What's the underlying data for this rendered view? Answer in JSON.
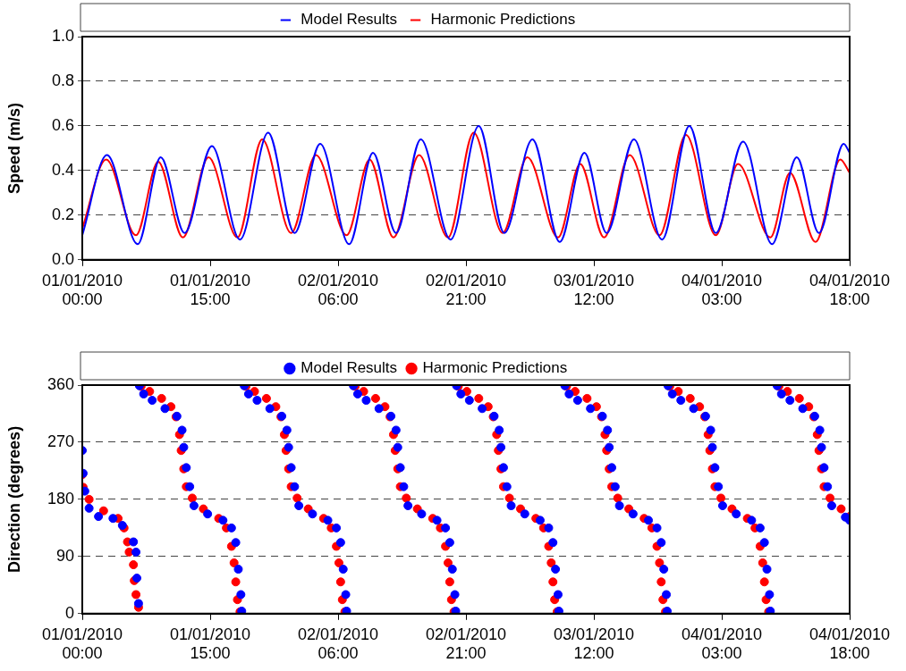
{
  "chart_data": [
    {
      "type": "line",
      "ylabel": "Speed (m/s)",
      "xlim": [
        "2010-01-01T00:00",
        "2010-01-04T18:00"
      ],
      "xticks": [
        {
          "value": "2010-01-01T00:00",
          "label": "01/01/2010 00:00"
        },
        {
          "value": "2010-01-01T15:00",
          "label": "01/01/2010 15:00"
        },
        {
          "value": "2010-01-02T06:00",
          "label": "02/01/2010 06:00"
        },
        {
          "value": "2010-01-02T21:00",
          "label": "02/01/2010 21:00"
        },
        {
          "value": "2010-01-03T12:00",
          "label": "03/01/2010 12:00"
        },
        {
          "value": "2010-01-04T03:00",
          "label": "04/01/2010 03:00"
        },
        {
          "value": "2010-01-04T18:00",
          "label": "04/01/2010 18:00"
        }
      ],
      "ylim": [
        0,
        1
      ],
      "yticks": [
        {
          "value": 0,
          "label": "0.0"
        },
        0.2,
        0.4,
        0.6,
        0.8,
        {
          "value": 1,
          "label": "1.0"
        }
      ],
      "grid": "y",
      "legend": "top",
      "marker": "none",
      "series": [
        {
          "name": "Model Results",
          "color": "#0000ff",
          "x": [
            "2010-01-01T00:00",
            "2010-01-01T02:54",
            "2010-01-01T06:30",
            "2010-01-01T09:12",
            "2010-01-01T12:00",
            "2010-01-01T15:12",
            "2010-01-01T18:30",
            "2010-01-01T21:48",
            "2010-01-02T00:54",
            "2010-01-02T03:54",
            "2010-01-02T07:18",
            "2010-01-02T10:06",
            "2010-01-02T12:48",
            "2010-01-02T15:42",
            "2010-01-02T19:12",
            "2010-01-02T22:30",
            "2010-01-03T01:30",
            "2010-01-03T04:48",
            "2010-01-03T08:00",
            "2010-01-03T10:54",
            "2010-01-03T13:30",
            "2010-01-03T16:42",
            "2010-01-03T20:00",
            "2010-01-03T23:12",
            "2010-01-04T02:18",
            "2010-01-04T05:30",
            "2010-01-04T08:54",
            "2010-01-04T11:48",
            "2010-01-04T14:24",
            "2010-01-04T17:18",
            "2010-01-04T18:00"
          ],
          "values": [
            0.11,
            0.47,
            0.07,
            0.46,
            0.12,
            0.51,
            0.09,
            0.57,
            0.12,
            0.52,
            0.07,
            0.48,
            0.12,
            0.54,
            0.09,
            0.6,
            0.12,
            0.54,
            0.08,
            0.48,
            0.12,
            0.54,
            0.09,
            0.6,
            0.12,
            0.53,
            0.07,
            0.46,
            0.12,
            0.52,
            0.48
          ]
        },
        {
          "name": "Harmonic Predictions",
          "color": "#ff0000",
          "x": [
            "2010-01-01T00:00",
            "2010-01-01T02:48",
            "2010-01-01T06:18",
            "2010-01-01T08:54",
            "2010-01-01T11:48",
            "2010-01-01T14:48",
            "2010-01-01T18:12",
            "2010-01-01T21:06",
            "2010-01-02T00:30",
            "2010-01-02T03:24",
            "2010-01-02T07:00",
            "2010-01-02T09:42",
            "2010-01-02T12:30",
            "2010-01-02T15:30",
            "2010-01-02T18:54",
            "2010-01-02T21:54",
            "2010-01-03T01:18",
            "2010-01-03T04:12",
            "2010-01-03T07:48",
            "2010-01-03T10:24",
            "2010-01-03T13:12",
            "2010-01-03T16:12",
            "2010-01-03T19:42",
            "2010-01-03T22:48",
            "2010-01-04T02:18",
            "2010-01-04T04:54",
            "2010-01-04T08:42",
            "2010-01-04T11:00",
            "2010-01-04T14:00",
            "2010-01-04T16:54",
            "2010-01-04T18:00"
          ],
          "values": [
            0.14,
            0.45,
            0.11,
            0.44,
            0.1,
            0.46,
            0.1,
            0.54,
            0.12,
            0.47,
            0.11,
            0.45,
            0.1,
            0.47,
            0.1,
            0.57,
            0.12,
            0.46,
            0.1,
            0.43,
            0.1,
            0.47,
            0.11,
            0.56,
            0.11,
            0.43,
            0.1,
            0.39,
            0.08,
            0.45,
            0.39
          ]
        }
      ]
    },
    {
      "type": "scatter",
      "ylabel": "Direction (degrees)",
      "xlim": [
        "2010-01-01T00:00",
        "2010-01-04T18:00"
      ],
      "xticks": [
        {
          "value": "2010-01-01T00:00",
          "label": "01/01/2010 00:00"
        },
        {
          "value": "2010-01-01T15:00",
          "label": "01/01/2010 15:00"
        },
        {
          "value": "2010-01-02T06:00",
          "label": "02/01/2010 06:00"
        },
        {
          "value": "2010-01-02T21:00",
          "label": "02/01/2010 21:00"
        },
        {
          "value": "2010-01-03T12:00",
          "label": "03/01/2010 12:00"
        },
        {
          "value": "2010-01-04T03:00",
          "label": "04/01/2010 03:00"
        },
        {
          "value": "2010-01-04T18:00",
          "label": "04/01/2010 18:00"
        }
      ],
      "ylim": [
        0,
        360
      ],
      "yticks": [
        0,
        90,
        180,
        270,
        360
      ],
      "grid": "y",
      "legend": "top",
      "marker": "circle",
      "series": [
        {
          "name": "Model Results",
          "color": "#0000ff",
          "x": [
            "2010-01-01T00:00",
            "2010-01-01T00:06",
            "2010-01-01T00:18",
            "2010-01-01T00:48",
            "2010-01-01T01:54",
            "2010-01-01T03:36",
            "2010-01-01T04:42",
            "2010-01-01T06:00",
            "2010-01-01T06:18",
            "2010-01-01T06:24",
            "2010-01-01T06:36",
            "2010-01-01T06:42",
            "2010-01-01T07:12",
            "2010-01-01T08:12",
            "2010-01-01T09:42",
            "2010-01-01T11:06",
            "2010-01-01T11:42",
            "2010-01-01T11:54",
            "2010-01-01T12:12",
            "2010-01-01T12:36",
            "2010-01-01T13:06",
            "2010-01-01T14:42",
            "2010-01-01T16:30",
            "2010-01-01T17:30",
            "2010-01-01T18:00",
            "2010-01-01T18:18",
            "2010-01-01T18:36",
            "2010-01-01T18:42",
            "2010-01-01T19:00",
            "2010-01-01T19:30",
            "2010-01-01T20:30",
            "2010-01-01T22:00",
            "2010-01-01T23:24",
            "2010-01-02T00:00",
            "2010-01-02T00:12",
            "2010-01-02T00:30",
            "2010-01-02T00:54",
            "2010-01-02T01:24",
            "2010-01-02T03:00",
            "2010-01-02T04:48",
            "2010-01-02T05:48",
            "2010-01-02T06:18",
            "2010-01-02T06:36",
            "2010-01-02T06:54",
            "2010-01-02T07:00",
            "2010-01-02T07:48",
            "2010-01-02T08:18",
            "2010-01-02T09:18",
            "2010-01-02T10:48",
            "2010-01-02T12:12",
            "2010-01-02T12:48",
            "2010-01-02T13:00",
            "2010-01-02T13:18",
            "2010-01-02T13:42",
            "2010-01-02T14:12",
            "2010-01-02T15:48",
            "2010-01-02T17:36",
            "2010-01-02T18:36",
            "2010-01-02T19:06",
            "2010-01-02T19:24",
            "2010-01-02T19:42",
            "2010-01-02T19:48",
            "2010-01-02T19:54",
            "2010-01-02T20:24",
            "2010-01-02T21:24",
            "2010-01-02T22:54",
            "2010-01-03T00:18",
            "2010-01-03T00:54",
            "2010-01-03T01:06",
            "2010-01-03T01:24",
            "2010-01-03T01:48",
            "2010-01-03T02:18",
            "2010-01-03T03:54",
            "2010-01-03T05:42",
            "2010-01-03T06:42",
            "2010-01-03T07:12",
            "2010-01-03T07:30",
            "2010-01-03T07:48",
            "2010-01-03T07:54",
            "2010-01-03T08:36",
            "2010-01-03T09:06",
            "2010-01-03T10:06",
            "2010-01-03T11:36",
            "2010-01-03T13:00",
            "2010-01-03T13:36",
            "2010-01-03T13:48",
            "2010-01-03T14:06",
            "2010-01-03T14:30",
            "2010-01-03T15:00",
            "2010-01-03T16:36",
            "2010-01-03T18:24",
            "2010-01-03T19:24",
            "2010-01-03T19:54",
            "2010-01-03T20:12",
            "2010-01-03T20:30",
            "2010-01-03T20:36",
            "2010-01-03T20:42",
            "2010-01-03T21:12",
            "2010-01-03T22:12",
            "2010-01-03T23:42",
            "2010-01-04T01:06",
            "2010-01-04T01:42",
            "2010-01-04T01:54",
            "2010-01-04T02:12",
            "2010-01-04T02:36",
            "2010-01-04T03:06",
            "2010-01-04T04:42",
            "2010-01-04T06:30",
            "2010-01-04T07:30",
            "2010-01-04T08:00",
            "2010-01-04T08:18",
            "2010-01-04T08:36",
            "2010-01-04T08:42",
            "2010-01-04T09:30",
            "2010-01-04T10:00",
            "2010-01-04T11:00",
            "2010-01-04T12:30",
            "2010-01-04T13:54",
            "2010-01-04T14:30",
            "2010-01-04T14:42",
            "2010-01-04T15:00",
            "2010-01-04T15:24",
            "2010-01-04T15:54",
            "2010-01-04T17:30",
            "2010-01-04T18:00"
          ],
          "values": [
            257,
            221,
            193,
            166,
            153,
            150,
            139,
            113,
            97,
            56,
            16,
            359,
            346,
            336,
            323,
            311,
            289,
            262,
            230,
            200,
            170,
            157,
            147,
            135,
            112,
            70,
            30,
            4,
            359,
            346,
            336,
            323,
            311,
            289,
            262,
            230,
            200,
            170,
            157,
            147,
            135,
            112,
            70,
            30,
            4,
            359,
            346,
            336,
            323,
            311,
            289,
            262,
            230,
            200,
            170,
            157,
            147,
            135,
            112,
            70,
            30,
            4,
            359,
            346,
            336,
            323,
            311,
            289,
            262,
            230,
            200,
            170,
            157,
            147,
            135,
            112,
            70,
            30,
            4,
            359,
            346,
            336,
            323,
            311,
            289,
            262,
            230,
            200,
            170,
            157,
            147,
            135,
            112,
            70,
            30,
            4,
            359,
            346,
            336,
            323,
            311,
            289,
            262,
            230,
            200,
            170,
            157,
            147,
            135,
            112,
            70,
            30,
            4,
            359,
            346,
            336,
            323,
            311,
            289,
            262,
            230,
            200,
            170,
            152,
            147
          ]
        },
        {
          "name": "Harmonic Predictions",
          "color": "#ff0000",
          "x": [
            "2010-01-01T00:00",
            "2010-01-01T00:06",
            "2010-01-01T00:48",
            "2010-01-01T02:30",
            "2010-01-01T04:12",
            "2010-01-01T04:54",
            "2010-01-01T05:18",
            "2010-01-01T05:30",
            "2010-01-01T06:00",
            "2010-01-01T06:06",
            "2010-01-01T06:18",
            "2010-01-01T06:36",
            "2010-01-01T06:54",
            "2010-01-01T07:54",
            "2010-01-01T09:18",
            "2010-01-01T10:24",
            "2010-01-01T11:00",
            "2010-01-01T11:24",
            "2010-01-01T11:36",
            "2010-01-01T11:54",
            "2010-01-01T12:12",
            "2010-01-01T12:54",
            "2010-01-01T14:12",
            "2010-01-01T16:00",
            "2010-01-01T16:54",
            "2010-01-01T17:30",
            "2010-01-01T17:48",
            "2010-01-01T18:00",
            "2010-01-01T18:12",
            "2010-01-01T18:30",
            "2010-01-01T19:12",
            "2010-01-01T20:12",
            "2010-01-01T21:36",
            "2010-01-01T22:42",
            "2010-01-01T23:18",
            "2010-01-01T23:42",
            "2010-01-01T23:54",
            "2010-01-02T00:12",
            "2010-01-02T00:30",
            "2010-01-02T01:12",
            "2010-01-02T02:30",
            "2010-01-02T04:18",
            "2010-01-02T05:12",
            "2010-01-02T05:48",
            "2010-01-02T06:06",
            "2010-01-02T06:18",
            "2010-01-02T06:30",
            "2010-01-02T06:48",
            "2010-01-02T08:00",
            "2010-01-02T09:00",
            "2010-01-02T10:24",
            "2010-01-02T11:30",
            "2010-01-02T12:06",
            "2010-01-02T12:30",
            "2010-01-02T12:42",
            "2010-01-02T13:00",
            "2010-01-02T13:18",
            "2010-01-02T14:00",
            "2010-01-02T15:18",
            "2010-01-02T17:06",
            "2010-01-02T18:00",
            "2010-01-02T18:36",
            "2010-01-02T18:54",
            "2010-01-02T19:06",
            "2010-01-02T19:18",
            "2010-01-02T19:36",
            "2010-01-02T20:06",
            "2010-01-02T21:06",
            "2010-01-02T22:30",
            "2010-01-02T23:36",
            "2010-01-03T00:12",
            "2010-01-03T00:36",
            "2010-01-03T00:48",
            "2010-01-03T01:06",
            "2010-01-03T01:24",
            "2010-01-03T02:06",
            "2010-01-03T03:24",
            "2010-01-03T05:12",
            "2010-01-03T06:06",
            "2010-01-03T06:42",
            "2010-01-03T07:00",
            "2010-01-03T07:12",
            "2010-01-03T07:24",
            "2010-01-03T07:42",
            "2010-01-03T08:48",
            "2010-01-03T09:48",
            "2010-01-03T11:12",
            "2010-01-03T12:18",
            "2010-01-03T12:54",
            "2010-01-03T13:18",
            "2010-01-03T13:30",
            "2010-01-03T13:48",
            "2010-01-03T14:06",
            "2010-01-03T14:48",
            "2010-01-03T16:06",
            "2010-01-03T17:54",
            "2010-01-03T18:48",
            "2010-01-03T19:24",
            "2010-01-03T19:42",
            "2010-01-03T19:54",
            "2010-01-03T20:06",
            "2010-01-03T20:24",
            "2010-01-03T20:54",
            "2010-01-03T21:54",
            "2010-01-03T23:18",
            "2010-01-04T00:24",
            "2010-01-04T01:00",
            "2010-01-04T01:24",
            "2010-01-04T01:36",
            "2010-01-04T01:54",
            "2010-01-04T02:12",
            "2010-01-04T02:54",
            "2010-01-04T04:12",
            "2010-01-04T06:00",
            "2010-01-04T06:54",
            "2010-01-04T07:30",
            "2010-01-04T07:48",
            "2010-01-04T08:00",
            "2010-01-04T08:12",
            "2010-01-04T08:30",
            "2010-01-04T09:42",
            "2010-01-04T10:42",
            "2010-01-04T12:06",
            "2010-01-04T13:12",
            "2010-01-04T13:48",
            "2010-01-04T14:12",
            "2010-01-04T14:24",
            "2010-01-04T14:42",
            "2010-01-04T15:00",
            "2010-01-04T15:42",
            "2010-01-04T17:00",
            "2010-01-04T18:00"
          ],
          "values": [
            219,
            199,
            180,
            162,
            150,
            135,
            113,
            97,
            77,
            52,
            30,
            10,
            358,
            350,
            339,
            326,
            310,
            282,
            257,
            228,
            200,
            182,
            165,
            150,
            135,
            106,
            80,
            50,
            22,
            3,
            358,
            350,
            339,
            326,
            310,
            282,
            257,
            228,
            200,
            182,
            165,
            150,
            135,
            106,
            80,
            50,
            22,
            3,
            358,
            350,
            339,
            326,
            310,
            282,
            257,
            228,
            200,
            182,
            165,
            150,
            135,
            106,
            80,
            50,
            22,
            3,
            358,
            350,
            339,
            326,
            310,
            282,
            257,
            228,
            200,
            182,
            165,
            150,
            135,
            106,
            80,
            50,
            22,
            3,
            358,
            350,
            339,
            326,
            310,
            282,
            257,
            228,
            200,
            182,
            165,
            150,
            135,
            106,
            80,
            50,
            22,
            3,
            358,
            350,
            339,
            326,
            310,
            282,
            257,
            228,
            200,
            182,
            165,
            150,
            135,
            106,
            80,
            50,
            22,
            3,
            358,
            350,
            339,
            326,
            310,
            282,
            257,
            228,
            200,
            182,
            165,
            153
          ]
        }
      ]
    }
  ]
}
